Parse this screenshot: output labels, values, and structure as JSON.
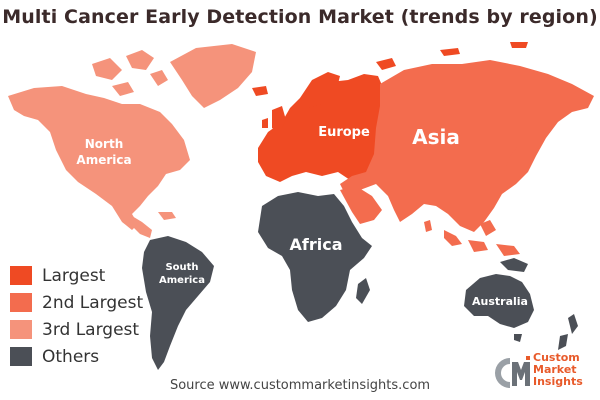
{
  "title": "Multi Cancer Early Detection Market (trends by region)",
  "regions": {
    "north_america": {
      "line1": "North",
      "line2": "America",
      "rank": "3rd Largest"
    },
    "europe": {
      "label": "Europe",
      "rank": "Largest"
    },
    "asia": {
      "label": "Asia",
      "rank": "2nd Largest"
    },
    "africa": {
      "label": "Africa",
      "rank": "Others"
    },
    "south_america": {
      "line1": "South",
      "line2": "America",
      "rank": "Others"
    },
    "australia": {
      "label": "Australia",
      "rank": "Others"
    }
  },
  "legend": [
    {
      "label": "Largest",
      "color": "#ef4a23"
    },
    {
      "label": "2nd Largest",
      "color": "#f36c4e"
    },
    {
      "label": "3rd Largest",
      "color": "#f5937b"
    },
    {
      "label": "Others",
      "color": "#4b4f56"
    }
  ],
  "source": "Source www.custommarketinsights.com",
  "logo": {
    "initials": "CMI",
    "line1": "Custom",
    "line2": "Market",
    "line3": "Insights"
  }
}
